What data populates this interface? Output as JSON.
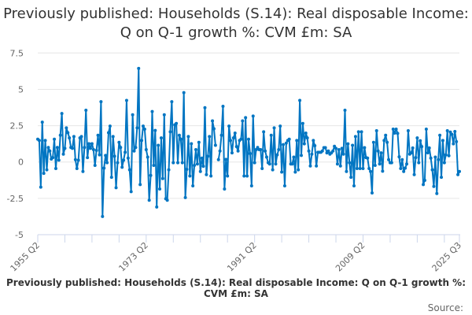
{
  "chart_data": {
    "type": "line",
    "title": "Previously published: Households (S.14): Real disposable Income: Q on Q-1 growth %: CVM £m: SA",
    "caption": "Previously published: Households (S.14): Real disposable Income: Q on Q-1 growth %: CVM £m: SA",
    "source_label": "Source:",
    "x_start": "1955 Q2",
    "x_end": "2025 Q3",
    "x_tick_labels": [
      "1955 Q2",
      "1973 Q2",
      "1991 Q2",
      "2009 Q2",
      "2025 Q3"
    ],
    "y_tick_labels": [
      "7.5",
      "5",
      "2.5",
      "0",
      "-2.5",
      "-5"
    ],
    "y_ticks": [
      7.5,
      5,
      2.5,
      0,
      -2.5,
      -5
    ],
    "ylim": [
      -5,
      7.5
    ],
    "grid": true,
    "legend": "none",
    "line_color": "#0075c2",
    "values": [
      1.57,
      1.48,
      -1.73,
      2.74,
      -0.78,
      1.48,
      -0.54,
      1.0,
      0.76,
      0.2,
      0.3,
      1.57,
      -0.45,
      1.0,
      0.13,
      1.84,
      3.34,
      0.54,
      0.94,
      2.35,
      2.02,
      1.66,
      1.0,
      0.94,
      1.75,
      0.16,
      -0.45,
      0.13,
      1.66,
      1.75,
      -0.65,
      1.0,
      3.56,
      0.3,
      1.26,
      0.94,
      1.26,
      0.85,
      -0.23,
      0.8,
      1.84,
      0.49,
      4.15,
      -3.75,
      -0.42,
      0.45,
      -0.05,
      2.02,
      2.47,
      -1.05,
      1.75,
      0.4,
      -1.77,
      -0.05,
      1.35,
      1.0,
      -0.36,
      0.13,
      0.67,
      4.24,
      0.27,
      -0.54,
      -2.04,
      3.25,
      0.76,
      1.0,
      2.35,
      6.44,
      -1.55,
      1.48,
      2.47,
      2.26,
      0.85,
      0.34,
      -2.63,
      -0.92,
      3.47,
      -0.23,
      2.17,
      -3.1,
      1.15,
      -1.86,
      1.66,
      -1.14,
      3.25,
      -2.53,
      -2.63,
      -0.54,
      2.08,
      4.15,
      -0.05,
      2.56,
      2.65,
      -0.05,
      1.84,
      1.57,
      -0.05,
      4.77,
      -2.45,
      -0.5,
      1.75,
      -0.96,
      1.26,
      -1.64,
      -0.23,
      0.85,
      -0.14,
      1.35,
      -0.65,
      0.27,
      -0.29,
      3.74,
      -0.87,
      0.4,
      1.75,
      -0.96,
      2.83,
      2.29,
      1.15,
      null,
      0.16,
      0.76,
      1.84,
      3.83,
      -1.86,
      0.18,
      -0.96,
      2.47,
      1.48,
      0.63,
      1.66,
      1.99,
      1.06,
      0.76,
      1.48,
      1.57,
      2.83,
      -0.96,
      3.05,
      -0.96,
      1.57,
      0.58,
      -1.64,
      3.16,
      -0.05,
      0.85,
      1.0,
      0.85,
      0.85,
      -0.45,
      2.08,
      0.76,
      0.34,
      -0.05,
      -0.14,
      1.84,
      -0.54,
      2.35,
      -0.14,
      0.49,
      0.85,
      2.47,
      -0.69,
      1.2,
      -1.64,
      1.3,
      1.48,
      1.57,
      -0.14,
      -0.14,
      0.34,
      -0.69,
      1.48,
      -0.54,
      4.24,
      0.45,
      2.65,
      1.25,
      1.99,
      1.66,
      0.76,
      -0.27,
      0.54,
      1.48,
      1.12,
      -0.27,
      0.67,
      0.67,
      0.67,
      0.76,
      0.99,
      0.99,
      0.63,
      0.76,
      0.54,
      0.63,
      0.76,
      1.08,
      0.94,
      -0.14,
      0.85,
      -0.27,
      0.94,
      0.54,
      3.56,
      -0.65,
      1.25,
      -0.05,
      -1.05,
      1.15,
      -1.64,
      1.75,
      -0.45,
      2.08,
      -0.45,
      2.08,
      -0.45,
      0.99,
      0.3,
      0.27,
      -0.45,
      -0.65,
      -2.13,
      1.35,
      -0.23,
      2.15,
      0.76,
      -0.14,
      0.63,
      -0.63,
      1.48,
      1.84,
      1.35,
      0.16,
      -0.05,
      -0.05,
      2.26,
      1.99,
      2.26,
      1.97,
      0.36,
      -0.45,
      0.16,
      -0.65,
      -0.42,
      -0.14,
      2.15,
      0.54,
      0.63,
      0.97,
      -0.87,
      0.3,
      1.66,
      -0.05,
      1.46,
      1.06,
      -1.55,
      -1.26,
      2.26,
      0.63,
      0.97,
      0.27,
      -0.54,
      -1.68,
      0.34,
      -2.17,
      0.16,
      1.84,
      -1.05,
      1.48,
      -0.05,
      0.49,
      2.15,
      0.43,
      2.06,
      1.9,
      1.25,
      2.1,
      1.4,
      -0.87,
      -0.65
    ]
  }
}
